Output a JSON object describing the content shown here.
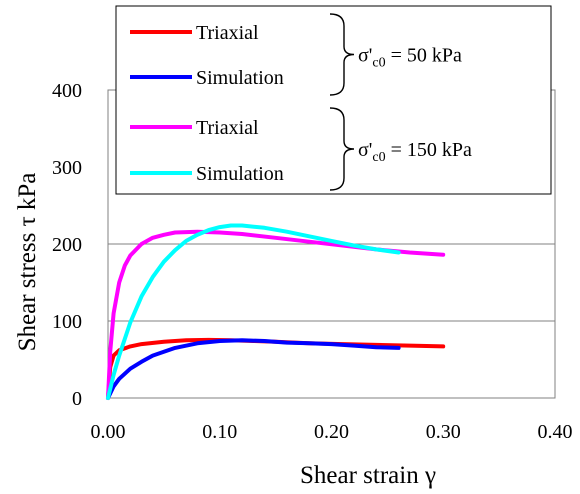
{
  "chart_data": {
    "type": "line",
    "xlabel": "Shear strain γ",
    "ylabel": "Shear stress τ kPa",
    "xlim": [
      0,
      0.4
    ],
    "ylim": [
      0,
      400
    ],
    "x_ticks": [
      "0.00",
      "0.10",
      "0.20",
      "0.30",
      "0.40"
    ],
    "y_ticks": [
      "0",
      "100",
      "200",
      "300",
      "400"
    ],
    "grid": "horizontal at 100, 200, 400",
    "legend_placement": "top-right",
    "legend_groups": [
      {
        "label": "σ'c0 = 50 kPa",
        "series_index": [
          0,
          1
        ]
      },
      {
        "label": "σ'c0 = 150 kPa",
        "series_index": [
          2,
          3
        ]
      }
    ],
    "series": [
      {
        "name": "Triaxial",
        "group": "σ'c0 = 50 kPa",
        "color": "#ff0000",
        "x": [
          0,
          0.002,
          0.005,
          0.01,
          0.02,
          0.03,
          0.05,
          0.07,
          0.09,
          0.11,
          0.13,
          0.15,
          0.18,
          0.21,
          0.24,
          0.27,
          0.3
        ],
        "y": [
          0,
          40,
          55,
          62,
          67,
          70,
          73,
          75,
          75.5,
          75,
          74,
          73,
          71,
          70,
          69,
          68,
          67
        ]
      },
      {
        "name": "Simulation",
        "group": "σ'c0 = 50 kPa",
        "color": "#0000ff",
        "x": [
          0,
          0.005,
          0.01,
          0.02,
          0.03,
          0.04,
          0.06,
          0.08,
          0.1,
          0.12,
          0.14,
          0.16,
          0.18,
          0.2,
          0.22,
          0.24,
          0.26
        ],
        "y": [
          0,
          15,
          25,
          38,
          47,
          55,
          65,
          71,
          74,
          75,
          74,
          72,
          71,
          70,
          68,
          66,
          65
        ]
      },
      {
        "name": "Triaxial",
        "group": "σ'c0 = 150 kPa",
        "color": "#ff00ff",
        "x": [
          0,
          0.002,
          0.005,
          0.01,
          0.015,
          0.02,
          0.03,
          0.04,
          0.05,
          0.06,
          0.08,
          0.1,
          0.12,
          0.15,
          0.18,
          0.21,
          0.24,
          0.27,
          0.3
        ],
        "y": [
          0,
          60,
          110,
          150,
          172,
          185,
          200,
          208,
          212,
          215,
          216,
          215,
          213,
          208,
          203,
          198,
          193,
          189,
          186
        ]
      },
      {
        "name": "Simulation",
        "group": "σ'c0 = 150 kPa",
        "color": "#00ffff",
        "x": [
          0,
          0.005,
          0.01,
          0.02,
          0.03,
          0.04,
          0.05,
          0.06,
          0.07,
          0.08,
          0.09,
          0.1,
          0.11,
          0.12,
          0.14,
          0.16,
          0.18,
          0.2,
          0.22,
          0.24,
          0.26
        ],
        "y": [
          0,
          30,
          55,
          98,
          132,
          157,
          177,
          192,
          204,
          212,
          218,
          222,
          224,
          224,
          221,
          216,
          210,
          204,
          198,
          193,
          189
        ]
      }
    ]
  }
}
